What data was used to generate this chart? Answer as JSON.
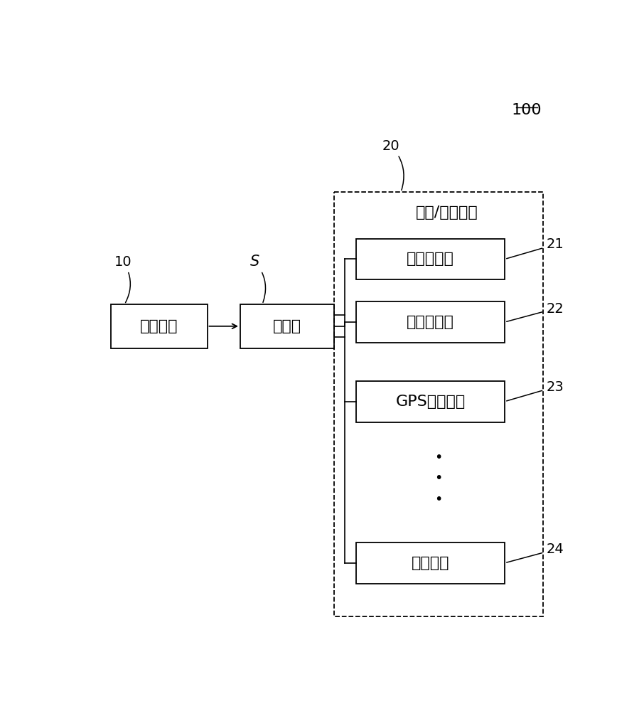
{
  "bg_color": "#ffffff",
  "label_100": "100",
  "label_10": "10",
  "label_S": "S",
  "label_20": "20",
  "label_21": "21",
  "label_22": "22",
  "label_23": "23",
  "label_24": "24",
  "box_control": "控制主机",
  "box_splitter": "分接器",
  "box_front_cam": "前置摄影机",
  "box_rear_cam": "后置摄影机",
  "box_gps": "GPS定位装置",
  "box_switch": "控制开关",
  "label_io": "输入/输出装置"
}
